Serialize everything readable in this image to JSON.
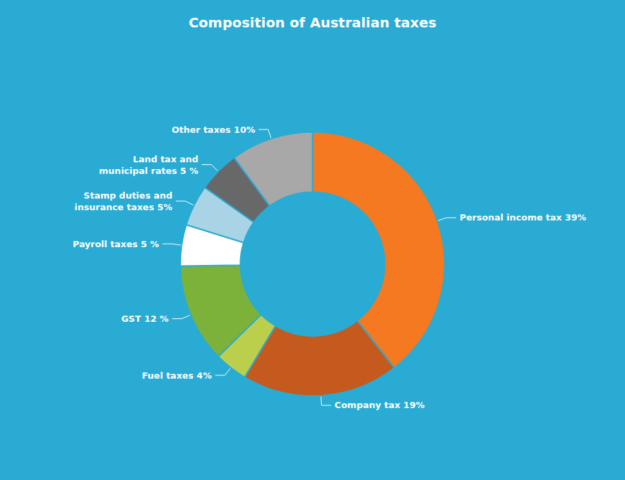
{
  "chart_data": {
    "type": "pie",
    "title": "Composition of Australian taxes",
    "categories": [
      "Personal income tax 39%",
      "Company tax 19%",
      "Fuel taxes 4%",
      "GST 12 %",
      "Payroll taxes 5 %",
      "Stamp duties and\ninsurance taxes 5%",
      "Land tax and\nmunicipal rates 5 %",
      "Other taxes 10%"
    ],
    "values": [
      39,
      19,
      4,
      12,
      5,
      5,
      5,
      10
    ],
    "colors": [
      "#F47920",
      "#C55A1E",
      "#BCCF4D",
      "#7DB23A",
      "#FFFFFF",
      "#A8D4E6",
      "#686868",
      "#A8A8A8"
    ],
    "data_labels": true,
    "legend": false
  }
}
